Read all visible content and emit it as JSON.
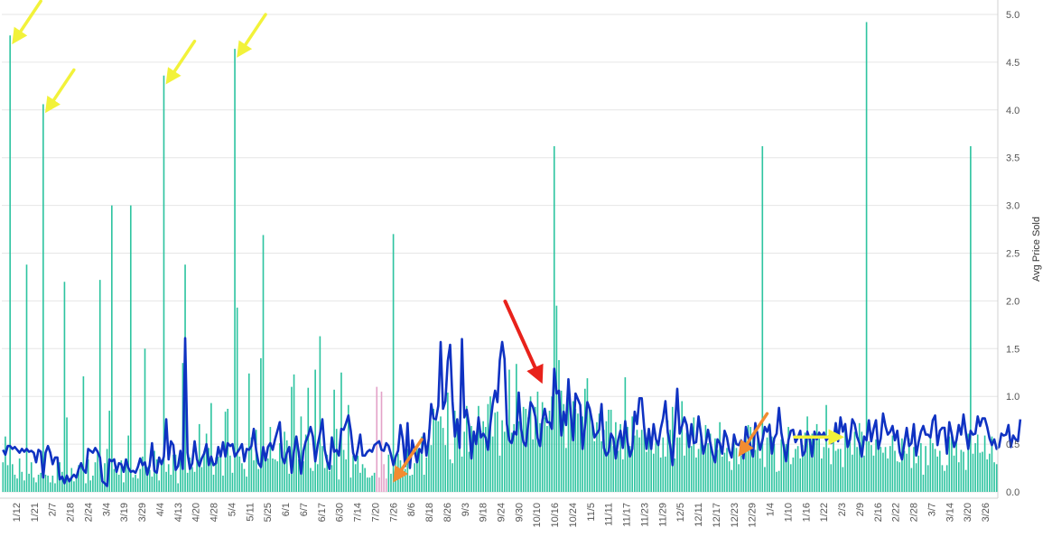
{
  "chart_data": {
    "type": "bar",
    "ylabel": "Avg Price Sold",
    "ylim": [
      0,
      5.0
    ],
    "yticks": [
      "0.0",
      "0.5",
      "1.0",
      "1.5",
      "2.0",
      "2.5",
      "3.0",
      "3.5",
      "4.0",
      "4.5",
      "5.0"
    ],
    "grid": true,
    "x_tick_labels": [
      "1/12",
      "1/21",
      "2/7",
      "2/18",
      "2/24",
      "3/4",
      "3/19",
      "3/29",
      "4/4",
      "4/13",
      "4/20",
      "4/28",
      "5/4",
      "5/11",
      "5/25",
      "6/1",
      "6/7",
      "6/17",
      "6/30",
      "7/14",
      "7/20",
      "7/26",
      "8/6",
      "8/18",
      "8/26",
      "9/3",
      "9/18",
      "9/24",
      "9/30",
      "10/10",
      "10/16",
      "10/24",
      "11/5",
      "11/11",
      "11/17",
      "11/23",
      "11/29",
      "12/5",
      "12/11",
      "12/17",
      "12/23",
      "12/29",
      "1/4",
      "1/10",
      "1/16",
      "1/22",
      "2/3",
      "2/9",
      "2/16",
      "2/22",
      "2/28",
      "3/7",
      "3/14",
      "3/20",
      "3/26"
    ],
    "colors": {
      "bars": "#2ec4a0",
      "bars_highlight": "#e3a2c8",
      "line": "#0f32c2",
      "grid": "#e6e6e6",
      "arrow_yellow": "#f2f23a",
      "arrow_orange": "#f28c30",
      "arrow_red": "#e8221b"
    },
    "series": [
      {
        "kind": "bars",
        "values": [
          0.31,
          0.58,
          0.28,
          4.78,
          0.29,
          0.18,
          0.14,
          0.35,
          0.21,
          0.12,
          2.38,
          0.19,
          0.31,
          0.15,
          0.1,
          0.18,
          0.2,
          4.06,
          0.18,
          0.17,
          0.1,
          0.17,
          0.09,
          0.33,
          0.31,
          0.21,
          2.2,
          0.78,
          0.14,
          0.25,
          0.11,
          0.17,
          0.28,
          0.31,
          1.21,
          0.09,
          0.34,
          0.12,
          0.17,
          0.31,
          0.42,
          2.22,
          0.14,
          0.3,
          0.45,
          0.85,
          3.0,
          0.24,
          0.25,
          0.18,
          0.33,
          0.1,
          0.31,
          0.59,
          3.0,
          0.15,
          0.18,
          0.14,
          0.24,
          0.37,
          1.5,
          0.26,
          0.23,
          0.16,
          0.43,
          0.34,
          0.12,
          0.29,
          4.36,
          0.21,
          0.29,
          0.18,
          0.39,
          0.39,
          0.09,
          0.36,
          1.35,
          2.38,
          0.2,
          0.36,
          0.26,
          0.21,
          0.32,
          0.71,
          0.26,
          0.42,
          0.61,
          0.46,
          0.93,
          0.18,
          0.36,
          0.37,
          0.36,
          0.17,
          0.84,
          0.87,
          0.38,
          0.2,
          4.64,
          1.93,
          0.37,
          0.3,
          0.24,
          0.16,
          1.24,
          0.57,
          0.33,
          0.65,
          0.24,
          1.4,
          2.69,
          0.41,
          0.35,
          0.68,
          0.35,
          0.34,
          0.32,
          0.51,
          0.42,
          0.63,
          0.54,
          0.19,
          1.1,
          1.23,
          0.56,
          0.34,
          0.79,
          0.32,
          0.6,
          1.09,
          0.25,
          0.22,
          1.28,
          0.29,
          1.63,
          0.48,
          0.25,
          0.39,
          0.22,
          0.28,
          1.07,
          0.66,
          0.13,
          1.25,
          0.44,
          0.34,
          0.91,
          0.15,
          0.38,
          0.29,
          0.38,
          0.2,
          0.29,
          0.25,
          0.15,
          0.15,
          0.17,
          0.2,
          1.1,
          0.15,
          1.05,
          0.29,
          0.14,
          0.39,
          0.19,
          2.7,
          0.39,
          0.4,
          0.33,
          0.25,
          0.24,
          0.45,
          0.17,
          0.18,
          0.3,
          0.49,
          0.41,
          0.58,
          0.18,
          0.36,
          0.65,
          0.49,
          0.87,
          0.79,
          0.74,
          0.79,
          0.67,
          0.49,
          1.04,
          0.34,
          0.3,
          0.85,
          0.7,
          0.69,
          0.37,
          0.63,
          0.9,
          0.42,
          0.69,
          0.64,
          0.59,
          0.9,
          0.64,
          0.74,
          0.68,
          0.92,
          1.0,
          0.58,
          0.83,
          0.84,
          0.38,
          0.75,
          0.63,
          0.86,
          1.28,
          0.62,
          0.71,
          1.34,
          0.74,
          0.64,
          0.89,
          0.87,
          0.78,
          1.0,
          0.55,
          0.89,
          1.05,
          0.72,
          0.94,
          0.78,
          0.69,
          0.85,
          1.0,
          3.62,
          1.95,
          1.38,
          1.06,
          0.92,
          0.46,
          1.02,
          0.82,
          0.95,
          0.87,
          0.82,
          0.82,
          0.79,
          1.08,
          1.19,
          0.88,
          0.76,
          0.53,
          0.73,
          0.82,
          0.53,
          0.65,
          0.74,
          0.86,
          0.86,
          0.48,
          0.73,
          0.43,
          0.71,
          0.34,
          1.2,
          0.68,
          0.48,
          0.79,
          0.59,
          0.65,
          0.57,
          0.65,
          0.64,
          0.42,
          0.61,
          0.58,
          0.4,
          0.53,
          0.49,
          0.36,
          0.57,
          0.37,
          0.75,
          0.65,
          0.89,
          0.35,
          0.57,
          0.57,
          0.95,
          0.38,
          0.62,
          0.6,
          0.48,
          0.78,
          0.36,
          0.45,
          0.56,
          0.49,
          0.7,
          0.51,
          0.61,
          0.38,
          0.56,
          0.44,
          0.73,
          0.37,
          0.41,
          0.46,
          0.32,
          0.23,
          0.52,
          0.46,
          0.29,
          0.38,
          0.5,
          0.64,
          0.7,
          0.68,
          0.58,
          0.44,
          0.63,
          0.35,
          3.62,
          0.26,
          0.57,
          0.72,
          0.58,
          0.5,
          0.21,
          0.22,
          0.55,
          0.48,
          0.5,
          0.68,
          0.29,
          0.36,
          0.45,
          0.48,
          0.35,
          0.49,
          0.62,
          0.79,
          0.59,
          0.61,
          0.61,
          0.71,
          0.6,
          0.35,
          0.47,
          0.91,
          0.46,
          0.29,
          0.63,
          0.43,
          0.45,
          0.45,
          0.26,
          0.65,
          0.56,
          0.52,
          0.39,
          0.63,
          0.47,
          0.72,
          0.63,
          0.38,
          4.92,
          0.53,
          0.49,
          0.38,
          0.55,
          0.48,
          0.47,
          0.41,
          0.47,
          0.35,
          0.48,
          0.59,
          0.43,
          0.32,
          0.31,
          0.56,
          0.43,
          0.4,
          0.56,
          0.25,
          0.47,
          0.3,
          0.38,
          0.51,
          0.18,
          0.48,
          0.28,
          0.59,
          0.51,
          0.45,
          0.37,
          0.43,
          0.28,
          0.22,
          0.28,
          0.58,
          0.59,
          0.38,
          0.56,
          0.31,
          0.44,
          0.42,
          0.23,
          0.61,
          3.62,
          0.4,
          0.51,
          0.6,
          0.41,
          0.42,
          0.59,
          0.34,
          0.4,
          0.58,
          0.31,
          0.29
        ]
      },
      {
        "kind": "line",
        "values": [
          0.44,
          0.39,
          0.48,
          0.48,
          0.45,
          0.47,
          0.44,
          0.41,
          0.45,
          0.42,
          0.45,
          0.42,
          0.43,
          0.41,
          0.31,
          0.44,
          0.42,
          0.15,
          0.41,
          0.48,
          0.41,
          0.29,
          0.36,
          0.36,
          0.13,
          0.16,
          0.09,
          0.17,
          0.11,
          0.15,
          0.18,
          0.15,
          0.24,
          0.3,
          0.23,
          0.2,
          0.45,
          0.43,
          0.41,
          0.46,
          0.42,
          0.36,
          0.11,
          0.09,
          0.06,
          0.34,
          0.32,
          0.34,
          0.21,
          0.3,
          0.29,
          0.21,
          0.34,
          0.25,
          0.21,
          0.22,
          0.2,
          0.26,
          0.35,
          0.28,
          0.31,
          0.18,
          0.28,
          0.51,
          0.22,
          0.2,
          0.36,
          0.29,
          0.37,
          0.76,
          0.34,
          0.53,
          0.49,
          0.23,
          0.27,
          0.43,
          0.24,
          1.61,
          0.41,
          0.24,
          0.3,
          0.53,
          0.34,
          0.27,
          0.35,
          0.4,
          0.5,
          0.28,
          0.37,
          0.28,
          0.3,
          0.47,
          0.37,
          0.52,
          0.37,
          0.51,
          0.48,
          0.5,
          0.37,
          0.41,
          0.45,
          0.5,
          0.32,
          0.45,
          0.44,
          0.48,
          0.66,
          0.44,
          0.3,
          0.26,
          0.47,
          0.33,
          0.47,
          0.51,
          0.44,
          0.55,
          0.64,
          0.73,
          0.36,
          0.3,
          0.41,
          0.47,
          0.2,
          0.43,
          0.58,
          0.41,
          0.19,
          0.43,
          0.53,
          0.59,
          0.68,
          0.58,
          0.32,
          0.49,
          0.61,
          0.76,
          0.44,
          0.32,
          0.24,
          0.57,
          0.42,
          0.44,
          0.38,
          0.66,
          0.65,
          0.72,
          0.8,
          0.64,
          0.41,
          0.33,
          0.45,
          0.6,
          0.38,
          0.38,
          0.42,
          0.44,
          0.42,
          0.49,
          0.51,
          0.53,
          0.44,
          0.43,
          0.51,
          0.48,
          0.39,
          0.28,
          0.37,
          0.43,
          0.7,
          0.55,
          0.27,
          0.72,
          0.25,
          0.54,
          0.43,
          0.31,
          0.45,
          0.41,
          0.61,
          0.38,
          0.56,
          0.92,
          0.77,
          0.76,
          0.9,
          1.57,
          0.87,
          0.95,
          1.37,
          1.54,
          0.95,
          0.58,
          0.76,
          0.46,
          1.6,
          0.78,
          0.86,
          0.69,
          0.35,
          0.63,
          0.5,
          0.78,
          0.57,
          0.61,
          0.57,
          0.44,
          0.71,
          0.92,
          1.06,
          0.94,
          1.38,
          1.57,
          1.39,
          0.71,
          0.54,
          0.51,
          0.63,
          0.6,
          1.04,
          0.66,
          0.52,
          0.48,
          0.71,
          0.94,
          0.89,
          0.79,
          0.56,
          0.48,
          0.75,
          0.87,
          0.73,
          0.73,
          0.66,
          1.29,
          1.03,
          1.06,
          0.59,
          0.84,
          0.7,
          1.18,
          0.82,
          0.54,
          1.03,
          0.97,
          0.91,
          0.45,
          0.69,
          0.94,
          0.87,
          0.74,
          0.57,
          0.61,
          0.65,
          0.92,
          0.46,
          0.38,
          0.42,
          0.61,
          0.56,
          0.35,
          0.54,
          0.64,
          0.46,
          0.74,
          0.52,
          0.37,
          0.45,
          0.84,
          0.71,
          0.98,
          0.98,
          0.68,
          0.45,
          0.66,
          0.45,
          0.71,
          0.55,
          0.49,
          0.66,
          0.77,
          0.95,
          0.62,
          0.49,
          0.28,
          0.68,
          1.08,
          0.61,
          0.69,
          0.78,
          0.7,
          0.47,
          0.71,
          0.51,
          0.52,
          0.79,
          0.61,
          0.4,
          0.5,
          0.65,
          0.51,
          0.39,
          0.31,
          0.55,
          0.51,
          0.4,
          0.64,
          0.57,
          0.43,
          0.36,
          0.6,
          0.5,
          0.49,
          0.54,
          0.35,
          0.68,
          0.57,
          0.48,
          0.37,
          0.72,
          0.59,
          0.44,
          0.54,
          0.68,
          0.63,
          0.7,
          0.4,
          0.56,
          0.61,
          0.88,
          0.62,
          0.48,
          0.32,
          0.54,
          0.64,
          0.65,
          0.52,
          0.57,
          0.64,
          0.38,
          0.42,
          0.63,
          0.55,
          0.37,
          0.63,
          0.55,
          0.62,
          0.58,
          0.62,
          0.54,
          0.58,
          0.51,
          0.53,
          0.72,
          0.53,
          0.78,
          0.63,
          0.71,
          0.47,
          0.55,
          0.76,
          0.71,
          0.58,
          0.51,
          0.37,
          0.58,
          0.54,
          0.75,
          0.53,
          0.66,
          0.75,
          0.45,
          0.56,
          0.82,
          0.69,
          0.6,
          0.63,
          0.69,
          0.54,
          0.64,
          0.42,
          0.34,
          0.51,
          0.67,
          0.48,
          0.51,
          0.71,
          0.38,
          0.52,
          0.63,
          0.69,
          0.6,
          0.6,
          0.57,
          0.75,
          0.8,
          0.49,
          0.64,
          0.67,
          0.67,
          0.4,
          0.73,
          0.61,
          0.47,
          0.54,
          0.7,
          0.6,
          0.81,
          0.62,
          0.45,
          0.64,
          0.6,
          0.61,
          0.79,
          0.69,
          0.77,
          0.77,
          0.68,
          0.56,
          0.49,
          0.55,
          0.45,
          0.47,
          0.61,
          0.59,
          0.6,
          0.7,
          0.47,
          0.59,
          0.55,
          0.53,
          0.76
        ]
      }
    ],
    "annotations": [
      {
        "kind": "arrow",
        "color": "yellow",
        "points_to_index": 3
      },
      {
        "kind": "arrow",
        "color": "yellow",
        "points_to_index": 17
      },
      {
        "kind": "arrow",
        "color": "yellow",
        "points_to_index": 68
      },
      {
        "kind": "arrow",
        "color": "yellow",
        "points_to_index": 98
      },
      {
        "kind": "arrow",
        "color": "orange",
        "points_to_index": 164
      },
      {
        "kind": "arrow",
        "color": "red",
        "points_to_index": 226
      },
      {
        "kind": "arrow",
        "color": "orange",
        "points_to_index": 310
      },
      {
        "kind": "arrow",
        "color": "yellow",
        "points_to_index": 356
      }
    ]
  }
}
